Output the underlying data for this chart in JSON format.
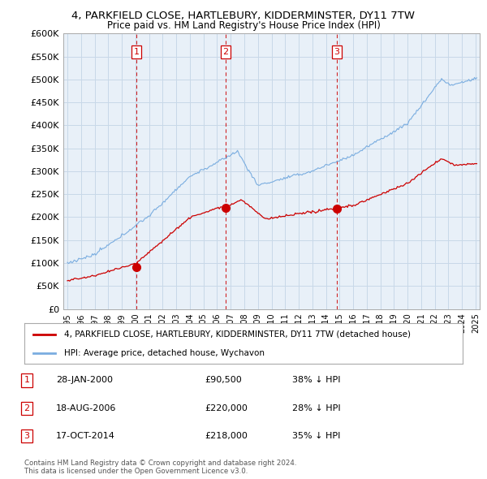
{
  "title_line1": "4, PARKFIELD CLOSE, HARTLEBURY, KIDDERMINSTER, DY11 7TW",
  "title_line2": "Price paid vs. HM Land Registry's House Price Index (HPI)",
  "ylabel_ticks": [
    "£0",
    "£50K",
    "£100K",
    "£150K",
    "£200K",
    "£250K",
    "£300K",
    "£350K",
    "£400K",
    "£450K",
    "£500K",
    "£550K",
    "£600K"
  ],
  "ylim": [
    0,
    600000
  ],
  "xlim_start": 1994.7,
  "xlim_end": 2025.3,
  "hpi_color": "#7aade0",
  "price_color": "#cc0000",
  "vline_color": "#cc0000",
  "grid_color": "#c8d8e8",
  "bg_color": "#e8f0f8",
  "legend_label_red": "4, PARKFIELD CLOSE, HARTLEBURY, KIDDERMINSTER, DY11 7TW (detached house)",
  "legend_label_blue": "HPI: Average price, detached house, Wychavon",
  "transactions": [
    {
      "num": 1,
      "date": "28-JAN-2000",
      "price": "£90,500",
      "hpi": "38% ↓ HPI",
      "year": 2000.07
    },
    {
      "num": 2,
      "date": "18-AUG-2006",
      "price": "£220,000",
      "hpi": "28% ↓ HPI",
      "year": 2006.63
    },
    {
      "num": 3,
      "date": "17-OCT-2014",
      "price": "£218,000",
      "hpi": "35% ↓ HPI",
      "year": 2014.79
    }
  ],
  "footer_line1": "Contains HM Land Registry data © Crown copyright and database right 2024.",
  "footer_line2": "This data is licensed under the Open Government Licence v3.0."
}
